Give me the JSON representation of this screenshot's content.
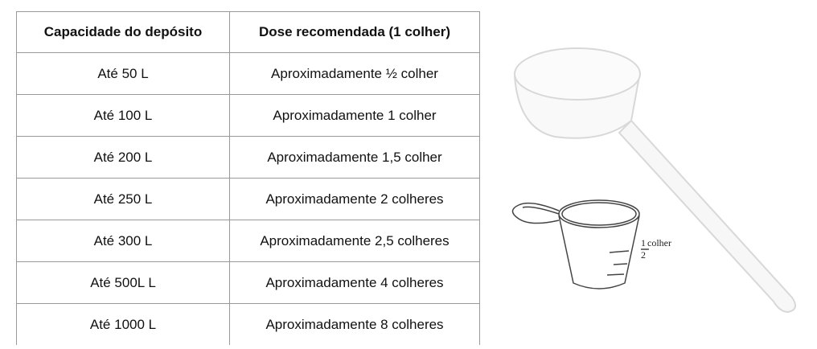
{
  "table": {
    "header": [
      "Capacidade do depósito",
      "Dose recomendada (1 colher)"
    ],
    "rows": [
      [
        "Até 50 L",
        "Aproximadamente ½ colher"
      ],
      [
        "Até 100 L",
        "Aproximadamente 1 colher"
      ],
      [
        "Até 200 L",
        "Aproximadamente 1,5 colher"
      ],
      [
        "Até 250 L",
        "Aproximadamente 2 colheres"
      ],
      [
        "Até 300 L",
        "Aproximadamente 2,5 colheres"
      ],
      [
        "Até 500L L",
        "Aproximadamente 4 colheres"
      ],
      [
        "Até 1000 L",
        "Aproximadamente 8 colheres"
      ]
    ]
  },
  "image": {
    "label": {
      "numerator": "1",
      "text": "colher",
      "denominator": "2"
    }
  }
}
